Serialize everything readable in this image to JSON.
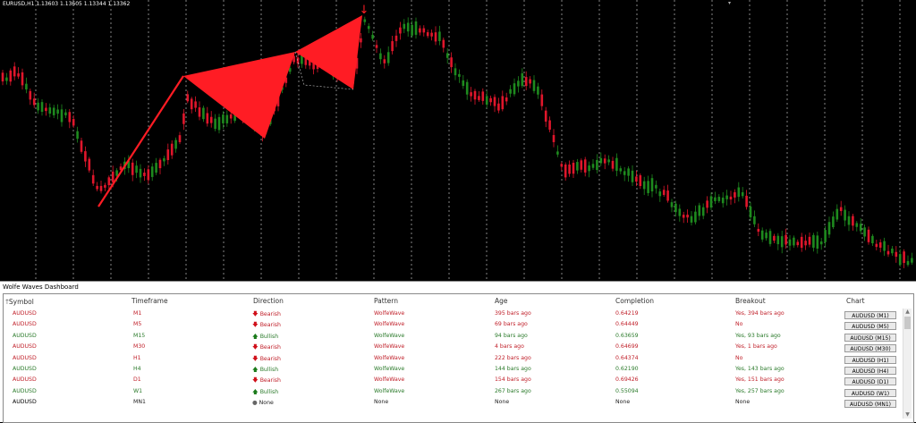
{
  "chart": {
    "ticker": "EURUSD,H1  1.13603 1.13605 1.13344 1.13362",
    "bull_color": "#1e8a1e",
    "bear_color": "#e0162b",
    "pattern_color": "#ff1c24",
    "grid_color": "#bdbdbd"
  },
  "panel": {
    "title": "Wolfe Waves Dashboard",
    "headers": {
      "symbol": "Symbol",
      "timeframe": "Timeframe",
      "direction": "Direction",
      "pattern": "Pattern",
      "age": "Age",
      "completion": "Completion",
      "breakout": "Breakout",
      "chart": "Chart"
    },
    "sort_icon": "arrow-up-icon",
    "rows": [
      {
        "symbol": "AUDUSD",
        "timeframe": "M1",
        "direction": "Bearish",
        "pattern": "WolfeWave",
        "age": "395 bars ago",
        "completion": "0.64219",
        "breakout": "Yes, 394 bars ago",
        "chart": "AUDUSD (M1)",
        "state": "bear"
      },
      {
        "symbol": "AUDUSD",
        "timeframe": "M5",
        "direction": "Bearish",
        "pattern": "WolfeWave",
        "age": "69 bars ago",
        "completion": "0.64449",
        "breakout": "No",
        "chart": "AUDUSD (M5)",
        "state": "bear"
      },
      {
        "symbol": "AUDUSD",
        "timeframe": "M15",
        "direction": "Bullish",
        "pattern": "WolfeWave",
        "age": "94 bars ago",
        "completion": "0.63659",
        "breakout": "Yes, 93 bars ago",
        "chart": "AUDUSD (M15)",
        "state": "bull"
      },
      {
        "symbol": "AUDUSD",
        "timeframe": "M30",
        "direction": "Bearish",
        "pattern": "WolfeWave",
        "age": "4 bars ago",
        "completion": "0.64699",
        "breakout": "Yes, 1 bars ago",
        "chart": "AUDUSD (M30)",
        "state": "bear"
      },
      {
        "symbol": "AUDUSD",
        "timeframe": "H1",
        "direction": "Bearish",
        "pattern": "WolfeWave",
        "age": "222 bars ago",
        "completion": "0.64374",
        "breakout": "No",
        "chart": "AUDUSD (H1)",
        "state": "bear"
      },
      {
        "symbol": "AUDUSD",
        "timeframe": "H4",
        "direction": "Bullish",
        "pattern": "WolfeWave",
        "age": "144 bars ago",
        "completion": "0.62190",
        "breakout": "Yes, 143 bars ago",
        "chart": "AUDUSD (H4)",
        "state": "bull"
      },
      {
        "symbol": "AUDUSD",
        "timeframe": "D1",
        "direction": "Bearish",
        "pattern": "WolfeWave",
        "age": "154 bars ago",
        "completion": "0.69426",
        "breakout": "Yes, 151 bars ago",
        "chart": "AUDUSD (D1)",
        "state": "bear"
      },
      {
        "symbol": "AUDUSD",
        "timeframe": "W1",
        "direction": "Bullish",
        "pattern": "WolfeWave",
        "age": "267 bars ago",
        "completion": "0.55094",
        "breakout": "Yes, 257 bars ago",
        "chart": "AUDUSD (W1)",
        "state": "bull"
      },
      {
        "symbol": "AUDUSD",
        "timeframe": "MN1",
        "direction": "None",
        "pattern": "None",
        "age": "None",
        "completion": "None",
        "breakout": "None",
        "chart": "AUDUSD (MN1)",
        "state": "none"
      }
    ],
    "colors": {
      "bear": "#c0202a",
      "bull": "#2a7a2a",
      "none": "#222222"
    }
  }
}
